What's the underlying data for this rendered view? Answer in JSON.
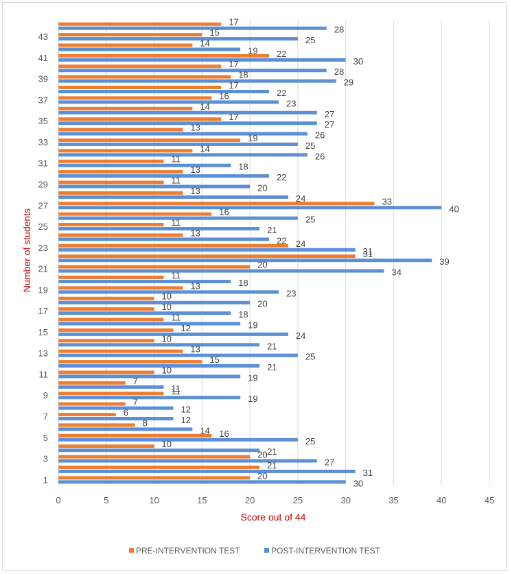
{
  "chart_data": {
    "type": "bar",
    "orientation": "horizontal",
    "xlabel": "Score out of 44",
    "ylabel": "Number of students",
    "xlim": [
      0,
      45
    ],
    "xticks": [
      0,
      5,
      10,
      15,
      20,
      25,
      30,
      35,
      40,
      45
    ],
    "ytick_labels": [
      "1",
      "3",
      "5",
      "7",
      "9",
      "11",
      "13",
      "15",
      "17",
      "19",
      "21",
      "23",
      "25",
      "27",
      "29",
      "31",
      "33",
      "35",
      "37",
      "39",
      "41",
      "43"
    ],
    "categories": [
      1,
      2,
      3,
      4,
      5,
      6,
      7,
      8,
      9,
      10,
      11,
      12,
      13,
      14,
      15,
      16,
      17,
      18,
      19,
      20,
      21,
      22,
      23,
      24,
      25,
      26,
      27,
      28,
      29,
      30,
      31,
      32,
      33,
      34,
      35,
      36,
      37,
      38,
      39,
      40,
      41,
      42,
      43,
      44
    ],
    "series": [
      {
        "name": "PRE-INTERVENTION TEST",
        "color": "#ed7d31",
        "values": [
          20,
          21,
          20,
          10,
          16,
          8,
          6,
          7,
          11,
          7,
          10,
          15,
          13,
          10,
          12,
          11,
          10,
          10,
          13,
          11,
          20,
          31,
          24,
          13,
          11,
          16,
          33,
          13,
          11,
          13,
          11,
          14,
          19,
          13,
          17,
          14,
          16,
          17,
          18,
          17,
          22,
          14,
          15,
          17
        ]
      },
      {
        "name": "POST-INTERVENTION TEST",
        "color": "#5b8fd6",
        "values": [
          30,
          31,
          27,
          21,
          25,
          14,
          12,
          12,
          19,
          11,
          19,
          21,
          25,
          21,
          24,
          19,
          18,
          20,
          23,
          18,
          34,
          39,
          31,
          22,
          21,
          25,
          40,
          24,
          20,
          22,
          18,
          26,
          25,
          26,
          27,
          27,
          23,
          22,
          29,
          28,
          30,
          19,
          25,
          28
        ]
      }
    ],
    "legend_position": "bottom",
    "grid": "vertical",
    "data_labels": true
  }
}
